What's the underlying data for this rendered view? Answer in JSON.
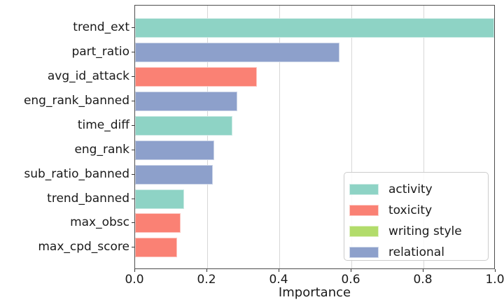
{
  "chart_data": {
    "type": "bar",
    "orientation": "horizontal",
    "title": "",
    "xlabel": "Importance",
    "ylabel": "",
    "xlim": [
      0.0,
      1.0
    ],
    "xticks": [
      {
        "value": 0.0,
        "label": "0.0"
      },
      {
        "value": 0.2,
        "label": "0.2"
      },
      {
        "value": 0.4,
        "label": "0.4"
      },
      {
        "value": 0.6,
        "label": "0.6"
      },
      {
        "value": 0.8,
        "label": "0.8"
      },
      {
        "value": 1.0,
        "label": "1.0"
      }
    ],
    "grid": "vertical-gridlines-at-xticks",
    "legend_position": "lower right",
    "categories": [
      "trend_ext",
      "part_ratio",
      "avg_id_attack",
      "eng_rank_banned",
      "time_diff",
      "eng_rank",
      "sub_ratio_banned",
      "trend_banned",
      "max_obsc",
      "max_cpd_score"
    ],
    "values": [
      1.0,
      0.57,
      0.34,
      0.285,
      0.27,
      0.22,
      0.217,
      0.137,
      0.126,
      0.117
    ],
    "groups": [
      "activity",
      "relational",
      "toxicity",
      "relational",
      "activity",
      "relational",
      "relational",
      "activity",
      "toxicity",
      "toxicity"
    ],
    "legend": [
      {
        "label": "activity",
        "group": "activity"
      },
      {
        "label": "toxicity",
        "group": "toxicity"
      },
      {
        "label": "writing style",
        "group": "writing_style"
      },
      {
        "label": "relational",
        "group": "relational"
      }
    ],
    "colors": {
      "activity": "#8ed3c5",
      "toxicity": "#fa8174",
      "writing_style": "#b2dc6b",
      "relational": "#8da0cb"
    }
  }
}
